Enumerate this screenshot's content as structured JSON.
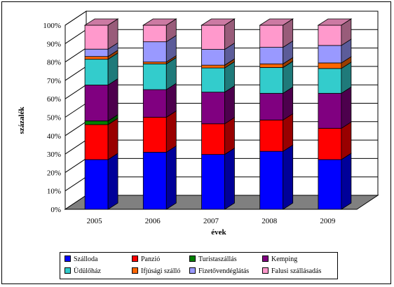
{
  "chart_data": {
    "type": "bar",
    "stacked": true,
    "percent": true,
    "three_d": true,
    "xlabel": "évek",
    "ylabel": "százalék",
    "categories": [
      "2005",
      "2006",
      "2007",
      "2008",
      "2009"
    ],
    "ylim": [
      0,
      100
    ],
    "yticks": [
      "0%",
      "10%",
      "20%",
      "30%",
      "40%",
      "50%",
      "60%",
      "70%",
      "80%",
      "90%",
      "100%"
    ],
    "grid": true,
    "legend_position": "bottom",
    "series": [
      {
        "name": "Szálloda",
        "color": "#0000ff",
        "values": [
          27,
          31,
          29.5,
          31.5,
          27
        ]
      },
      {
        "name": "Panzió",
        "color": "#ff0000",
        "values": [
          19,
          19,
          16.5,
          17,
          17
        ]
      },
      {
        "name": "Turistaszállás",
        "color": "#008000",
        "values": [
          2,
          0,
          0,
          0,
          0
        ]
      },
      {
        "name": "Kemping",
        "color": "#800080",
        "values": [
          19.5,
          15,
          17,
          14.5,
          19
        ]
      },
      {
        "name": "Üdülőház",
        "color": "#33cccc",
        "values": [
          14,
          14,
          13,
          14,
          13.5
        ]
      },
      {
        "name": "Ifjúsági szálló",
        "color": "#ff6600",
        "values": [
          1.5,
          1,
          1.5,
          2,
          3
        ]
      },
      {
        "name": "Fizetővendéglátás",
        "color": "#9999ff",
        "values": [
          4,
          11,
          8.5,
          9,
          9.5
        ]
      },
      {
        "name": "Falusi szállásadás",
        "color": "#ff99cc",
        "values": [
          13,
          9,
          13,
          12,
          11
        ]
      }
    ]
  }
}
